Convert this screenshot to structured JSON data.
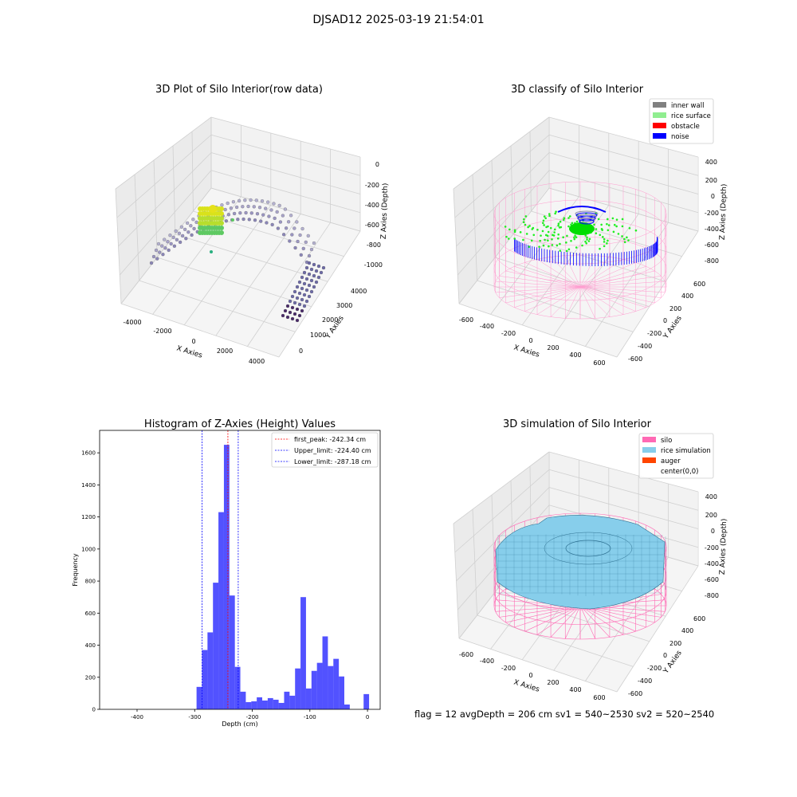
{
  "figure": {
    "suptitle": "DJSAD12 2025-03-19 21:54:01",
    "status": "flag = 12   avgDepth = 206 cm  sv1 = 540~2530  sv2 = 520~2540"
  },
  "chart_data": [
    {
      "type": "scatter",
      "title": "3D Plot of Silo Interior(row data)",
      "xlabel": "X Axies",
      "ylabel": "Y Axies",
      "zlabel": "Z Axies (Depth)",
      "xticks": [
        -4000,
        -2000,
        0,
        2000,
        4000
      ],
      "yticks": [
        0,
        1000,
        2000,
        3000,
        4000
      ],
      "zticks": [
        0,
        -200,
        -400,
        -600,
        -800,
        -1000
      ]
    },
    {
      "type": "scatter",
      "title": "3D classify of Silo Interior",
      "xlabel": "X Axies",
      "ylabel": "Y Axies",
      "zlabel": "Z Axies (Depth)",
      "xticks": [
        -600,
        -400,
        -200,
        0,
        200,
        400,
        600
      ],
      "yticks": [
        -600,
        -400,
        -200,
        0,
        200,
        400,
        600
      ],
      "zticks": [
        400,
        200,
        0,
        -200,
        -400,
        -600,
        -800
      ],
      "legend": {
        "position": "top-right",
        "entries": [
          {
            "name": "inner wall",
            "color": "#808080"
          },
          {
            "name": "rice surface",
            "color": "#90ee90"
          },
          {
            "name": "obstacle",
            "color": "#ff0000"
          },
          {
            "name": "noise",
            "color": "#0000ff"
          }
        ]
      }
    },
    {
      "type": "bar",
      "title": "Histogram of Z-Axies (Height) Values",
      "xlabel": "Depth (cm)",
      "ylabel": "Frequency",
      "xlim": [
        -465,
        22
      ],
      "ylim": [
        0,
        1740
      ],
      "xticks": [
        -400,
        -300,
        -200,
        -100,
        0
      ],
      "yticks": [
        0,
        200,
        400,
        600,
        800,
        1000,
        1200,
        1400,
        1600
      ],
      "bin_width": 9.5,
      "bar_color": "#0000ff",
      "bins": [
        {
          "x": -292,
          "v": 140
        },
        {
          "x": -282.5,
          "v": 370
        },
        {
          "x": -273,
          "v": 480
        },
        {
          "x": -263.5,
          "v": 790
        },
        {
          "x": -254,
          "v": 1230
        },
        {
          "x": -244.5,
          "v": 1650
        },
        {
          "x": -235,
          "v": 710
        },
        {
          "x": -225.5,
          "v": 265
        },
        {
          "x": -216,
          "v": 110
        },
        {
          "x": -206.5,
          "v": 45
        },
        {
          "x": -197,
          "v": 50
        },
        {
          "x": -187.5,
          "v": 75
        },
        {
          "x": -178,
          "v": 55
        },
        {
          "x": -168.5,
          "v": 70
        },
        {
          "x": -159,
          "v": 60
        },
        {
          "x": -149.5,
          "v": 40
        },
        {
          "x": -140,
          "v": 110
        },
        {
          "x": -130.5,
          "v": 85
        },
        {
          "x": -121,
          "v": 255
        },
        {
          "x": -111.5,
          "v": 700
        },
        {
          "x": -102,
          "v": 130
        },
        {
          "x": -92.5,
          "v": 240
        },
        {
          "x": -83,
          "v": 290
        },
        {
          "x": -73.5,
          "v": 455
        },
        {
          "x": -64,
          "v": 270
        },
        {
          "x": -54.5,
          "v": 315
        },
        {
          "x": -45,
          "v": 205
        },
        {
          "x": -35.5,
          "v": 30
        },
        {
          "x": -2,
          "v": 95
        }
      ],
      "vlines": [
        {
          "label": "first_peak: -242.34 cm",
          "x": -242.34,
          "color": "#ff0000"
        },
        {
          "label": "Upper_limit: -224.40 cm",
          "x": -224.4,
          "color": "#0000ff"
        },
        {
          "label": "Lower_limit: -287.18 cm",
          "x": -287.18,
          "color": "#0000ff"
        }
      ]
    },
    {
      "type": "surface",
      "title": "3D simulation of Silo Interior",
      "xlabel": "X Axies",
      "ylabel": "Y Axies",
      "zlabel": "Z Axies (Depth)",
      "xticks": [
        -600,
        -400,
        -200,
        0,
        200,
        400,
        600
      ],
      "yticks": [
        -600,
        -400,
        -200,
        0,
        200,
        400,
        600
      ],
      "zticks": [
        400,
        200,
        0,
        -200,
        -400,
        -600,
        -800
      ],
      "legend": {
        "position": "top-right",
        "entries": [
          {
            "name": "silo",
            "color": "#ff69b4"
          },
          {
            "name": "rice simulation",
            "color": "#87ceeb"
          },
          {
            "name": "auger",
            "color": "#ff4500"
          },
          {
            "name": "center(0,0)",
            "color": "#ffffff"
          }
        ]
      }
    }
  ]
}
